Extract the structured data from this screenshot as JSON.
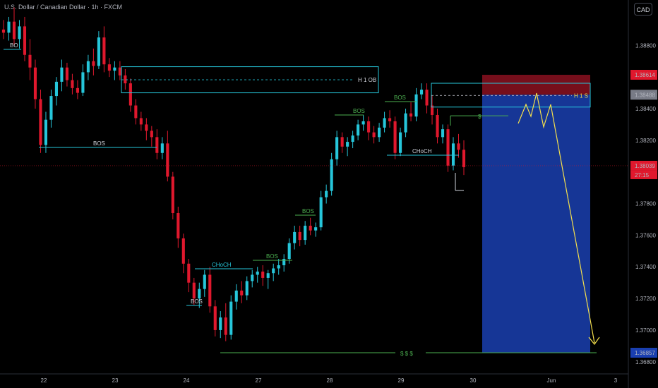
{
  "title": "U.S. Dollar / Canadian Dollar · 1h · FXCM",
  "currency": "CAD",
  "colors": {
    "bull": "#26c6da",
    "bear": "#e0182d",
    "background": "#000000",
    "structure": "#26c6da",
    "bos_green": "#4caf50",
    "projection": "#f5e04c",
    "sell_zone": "#1a3fb0",
    "stop_zone": "#8b1020"
  },
  "price_axis": {
    "ticks": [
      "1.38800",
      "1.38400",
      "1.38200",
      "1.37800",
      "1.37600",
      "1.37400",
      "1.37200",
      "1.37000",
      "1.36800"
    ],
    "badges": {
      "top": "1.38614",
      "entry": "1.38488",
      "current": "1.38039",
      "countdown": "27:15",
      "target": "1.36857"
    }
  },
  "time_axis": {
    "ticks": [
      "22",
      "23",
      "24",
      "27",
      "28",
      "29",
      "30",
      "Jun",
      "3"
    ]
  },
  "annotations": {
    "bo": "BO",
    "bos": "BOS",
    "choch": "CHoCH",
    "h1_ob": "H 1 OB",
    "hs": "H 1 S",
    "dollar": "$",
    "dollars": "$  $  $"
  },
  "chart_data": {
    "type": "candlestick",
    "symbol": "USDCAD",
    "timeframe": "1h",
    "y_range": [
      1.3675,
      1.3906
    ],
    "ohlc": [
      [
        1.389,
        1.3896,
        1.3884,
        1.3888
      ],
      [
        1.3888,
        1.3898,
        1.3883,
        1.3895
      ],
      [
        1.3895,
        1.3904,
        1.388,
        1.3884
      ],
      [
        1.3884,
        1.3896,
        1.3878,
        1.3892
      ],
      [
        1.3892,
        1.3898,
        1.387,
        1.3874
      ],
      [
        1.3874,
        1.3884,
        1.3858,
        1.3866
      ],
      [
        1.3866,
        1.3871,
        1.384,
        1.3846
      ],
      [
        1.3846,
        1.3852,
        1.3812,
        1.3817
      ],
      [
        1.3817,
        1.3838,
        1.3812,
        1.3833
      ],
      [
        1.3833,
        1.3852,
        1.3828,
        1.3848
      ],
      [
        1.3848,
        1.386,
        1.3842,
        1.3857
      ],
      [
        1.3857,
        1.3871,
        1.3851,
        1.3866
      ],
      [
        1.3866,
        1.3869,
        1.3854,
        1.3858
      ],
      [
        1.3858,
        1.3862,
        1.3849,
        1.3853
      ],
      [
        1.3853,
        1.3858,
        1.3846,
        1.385
      ],
      [
        1.385,
        1.3868,
        1.3848,
        1.3863
      ],
      [
        1.3863,
        1.3874,
        1.3858,
        1.387
      ],
      [
        1.387,
        1.3878,
        1.3861,
        1.3867
      ],
      [
        1.3867,
        1.3889,
        1.3865,
        1.3885
      ],
      [
        1.3885,
        1.3892,
        1.3863,
        1.3868
      ],
      [
        1.3868,
        1.3872,
        1.386,
        1.3864
      ],
      [
        1.3864,
        1.387,
        1.3858,
        1.3866
      ],
      [
        1.3866,
        1.387,
        1.3858,
        1.3861
      ],
      [
        1.3861,
        1.3865,
        1.3852,
        1.3856
      ],
      [
        1.3856,
        1.3859,
        1.3838,
        1.3842
      ],
      [
        1.3842,
        1.3846,
        1.383,
        1.3834
      ],
      [
        1.3834,
        1.3838,
        1.3826,
        1.383
      ],
      [
        1.383,
        1.3834,
        1.382,
        1.3826
      ],
      [
        1.3826,
        1.3829,
        1.3816,
        1.3822
      ],
      [
        1.3822,
        1.3827,
        1.3808,
        1.3812
      ],
      [
        1.3812,
        1.3822,
        1.3808,
        1.3818
      ],
      [
        1.3818,
        1.3826,
        1.3794,
        1.3797
      ],
      [
        1.3797,
        1.38,
        1.377,
        1.3774
      ],
      [
        1.3774,
        1.3778,
        1.3752,
        1.3758
      ],
      [
        1.3758,
        1.3761,
        1.3736,
        1.3742
      ],
      [
        1.3742,
        1.3745,
        1.3724,
        1.373
      ],
      [
        1.373,
        1.3733,
        1.3716,
        1.372
      ],
      [
        1.372,
        1.373,
        1.3714,
        1.3726
      ],
      [
        1.3726,
        1.3738,
        1.3721,
        1.3735
      ],
      [
        1.3735,
        1.374,
        1.3711,
        1.3715
      ],
      [
        1.3715,
        1.3719,
        1.3696,
        1.37
      ],
      [
        1.37,
        1.3712,
        1.3695,
        1.3708
      ],
      [
        1.3708,
        1.3717,
        1.3693,
        1.3697
      ],
      [
        1.3697,
        1.3722,
        1.3694,
        1.3718
      ],
      [
        1.3718,
        1.3729,
        1.3713,
        1.3725
      ],
      [
        1.3725,
        1.3731,
        1.3717,
        1.3722
      ],
      [
        1.3722,
        1.3734,
        1.3719,
        1.3731
      ],
      [
        1.3731,
        1.3738,
        1.3727,
        1.3735
      ],
      [
        1.3735,
        1.374,
        1.373,
        1.3737
      ],
      [
        1.3737,
        1.3741,
        1.3728,
        1.3733
      ],
      [
        1.3733,
        1.3738,
        1.3726,
        1.3736
      ],
      [
        1.3736,
        1.3742,
        1.3731,
        1.3739
      ],
      [
        1.3739,
        1.3745,
        1.3735,
        1.3741
      ],
      [
        1.3741,
        1.3748,
        1.3737,
        1.3745
      ],
      [
        1.3745,
        1.3758,
        1.3742,
        1.3755
      ],
      [
        1.3755,
        1.3766,
        1.3751,
        1.3762
      ],
      [
        1.3762,
        1.3766,
        1.3753,
        1.3757
      ],
      [
        1.3757,
        1.3769,
        1.3754,
        1.3766
      ],
      [
        1.3766,
        1.3771,
        1.376,
        1.3763
      ],
      [
        1.3763,
        1.3768,
        1.3759,
        1.3765
      ],
      [
        1.3765,
        1.3788,
        1.3763,
        1.3784
      ],
      [
        1.3784,
        1.3792,
        1.378,
        1.3788
      ],
      [
        1.3788,
        1.3812,
        1.3785,
        1.3808
      ],
      [
        1.3808,
        1.3826,
        1.3804,
        1.3822
      ],
      [
        1.3822,
        1.3825,
        1.3812,
        1.3816
      ],
      [
        1.3816,
        1.3822,
        1.381,
        1.3819
      ],
      [
        1.3819,
        1.3826,
        1.3815,
        1.3823
      ],
      [
        1.3823,
        1.3833,
        1.382,
        1.383
      ],
      [
        1.383,
        1.3836,
        1.3826,
        1.3832
      ],
      [
        1.3832,
        1.3835,
        1.382,
        1.3825
      ],
      [
        1.3825,
        1.3829,
        1.3818,
        1.3822
      ],
      [
        1.3822,
        1.3831,
        1.3819,
        1.3828
      ],
      [
        1.3828,
        1.3838,
        1.3825,
        1.3834
      ],
      [
        1.3834,
        1.3839,
        1.3828,
        1.3832
      ],
      [
        1.3832,
        1.3835,
        1.3808,
        1.3812
      ],
      [
        1.3812,
        1.3828,
        1.381,
        1.3825
      ],
      [
        1.3825,
        1.384,
        1.3822,
        1.3837
      ],
      [
        1.3837,
        1.3844,
        1.3832,
        1.3835
      ],
      [
        1.3835,
        1.3853,
        1.3832,
        1.3849
      ],
      [
        1.3849,
        1.3856,
        1.3846,
        1.3852
      ],
      [
        1.3852,
        1.3856,
        1.3837,
        1.3842
      ],
      [
        1.3842,
        1.3848,
        1.383,
        1.3836
      ],
      [
        1.3836,
        1.384,
        1.3818,
        1.3822
      ],
      [
        1.3822,
        1.383,
        1.3818,
        1.3827
      ],
      [
        1.3827,
        1.383,
        1.38,
        1.3804
      ],
      [
        1.3804,
        1.3822,
        1.3801,
        1.3818
      ],
      [
        1.3818,
        1.3824,
        1.3809,
        1.3814
      ],
      [
        1.3814,
        1.382,
        1.3798,
        1.3803
      ]
    ],
    "levels": [
      {
        "label": "H 1 OB",
        "price_top": 1.38665,
        "price_bottom": 1.385
      },
      {
        "label": "H 1 S",
        "price_top": 1.38614,
        "price_bottom": 1.3841
      },
      {
        "label": "$ $ $",
        "price": 1.36857
      },
      {
        "label": "$",
        "price": 1.38355
      }
    ],
    "short_position": {
      "entry": 1.38488,
      "stop": 1.38614,
      "target": 1.36857
    },
    "current_price": 1.38039
  }
}
